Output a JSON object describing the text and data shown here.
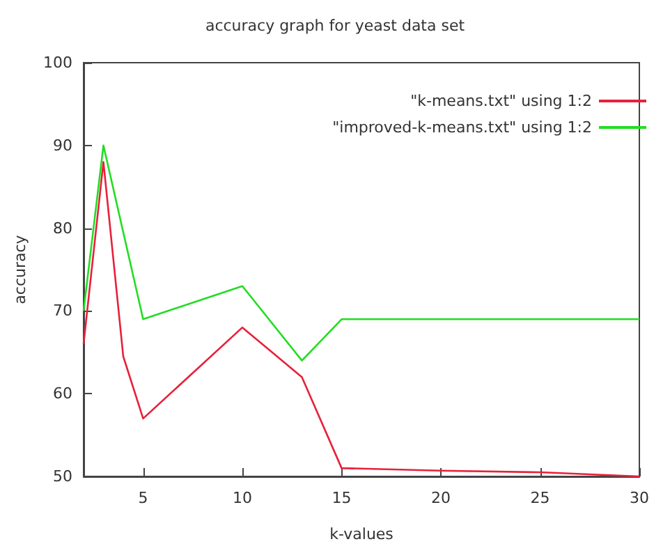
{
  "chart_data": {
    "type": "line",
    "title": "accuracy graph for yeast data set",
    "xlabel": "k-values",
    "ylabel": "accuracy",
    "xlim": [
      2,
      30
    ],
    "xticks": [
      5,
      10,
      15,
      20,
      25,
      30
    ],
    "ylim": [
      50,
      100
    ],
    "yticks": [
      50,
      60,
      70,
      80,
      90,
      100
    ],
    "grid": false,
    "legend": "top right",
    "marker": "none",
    "line_style": "solid",
    "series": [
      {
        "name": "\"k-means.txt\" using 1:2",
        "color": "#e8203a",
        "x": [
          2,
          3,
          4,
          5,
          10,
          13,
          15,
          20,
          25,
          30
        ],
        "values": [
          66,
          88,
          64.5,
          57,
          68,
          62,
          51,
          50.7,
          50.5,
          50
        ]
      },
      {
        "name": "\"improved-k-means.txt\" using 1:2",
        "color": "#22dd22",
        "x": [
          2,
          3,
          5,
          10,
          13,
          15,
          20,
          25,
          30
        ],
        "values": [
          70,
          90,
          69,
          73,
          64,
          69,
          69,
          69,
          69
        ]
      }
    ]
  }
}
